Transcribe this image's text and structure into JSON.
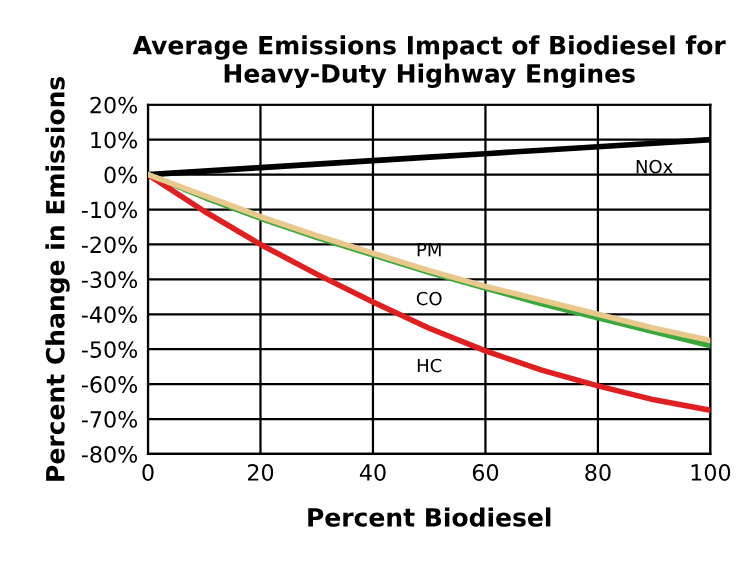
{
  "chart_data": {
    "type": "line",
    "title": "Average Emissions Impact of Biodiesel for\nHeavy-Duty Highway Engines",
    "xlabel": "Percent Biodiesel",
    "ylabel": "Percent Change in Emissions",
    "x": [
      0,
      10,
      20,
      30,
      40,
      50,
      60,
      70,
      80,
      90,
      100
    ],
    "series": [
      {
        "name": "NOx",
        "color": "#000000",
        "values": [
          0,
          1,
          2,
          3,
          4,
          5,
          6,
          7,
          8,
          9,
          10
        ]
      },
      {
        "name": "PM",
        "color": "#e8c88c",
        "values": [
          0,
          -6,
          -12,
          -17.5,
          -22.5,
          -27.5,
          -32,
          -36,
          -40,
          -44,
          -47.5
        ]
      },
      {
        "name": "CO",
        "color": "#3aa83a",
        "values": [
          0,
          -6.5,
          -12.5,
          -18,
          -23,
          -28,
          -32.5,
          -37,
          -41,
          -45,
          -49
        ]
      },
      {
        "name": "HC",
        "color": "#e02020",
        "values": [
          0,
          -10.5,
          -20,
          -28.5,
          -36.5,
          -44,
          -50.5,
          -56,
          -60.5,
          -64.5,
          -67.5
        ]
      }
    ],
    "xlim": [
      0,
      100
    ],
    "xticks": [
      0,
      20,
      40,
      60,
      80,
      100
    ],
    "ylim": [
      -80,
      20
    ],
    "yticks": [
      {
        "value": -80,
        "label": "-80%"
      },
      {
        "value": -70,
        "label": "-70%"
      },
      {
        "value": -60,
        "label": "-60%"
      },
      {
        "value": -50,
        "label": "-50%"
      },
      {
        "value": -40,
        "label": "-40%"
      },
      {
        "value": -30,
        "label": "-30%"
      },
      {
        "value": -20,
        "label": "-20%"
      },
      {
        "value": -10,
        "label": "-10%"
      },
      {
        "value": 0,
        "label": "0%"
      },
      {
        "value": 10,
        "label": "10%"
      },
      {
        "value": 20,
        "label": "20%"
      }
    ],
    "grid": true,
    "line_style": "solid",
    "marker": "none"
  }
}
